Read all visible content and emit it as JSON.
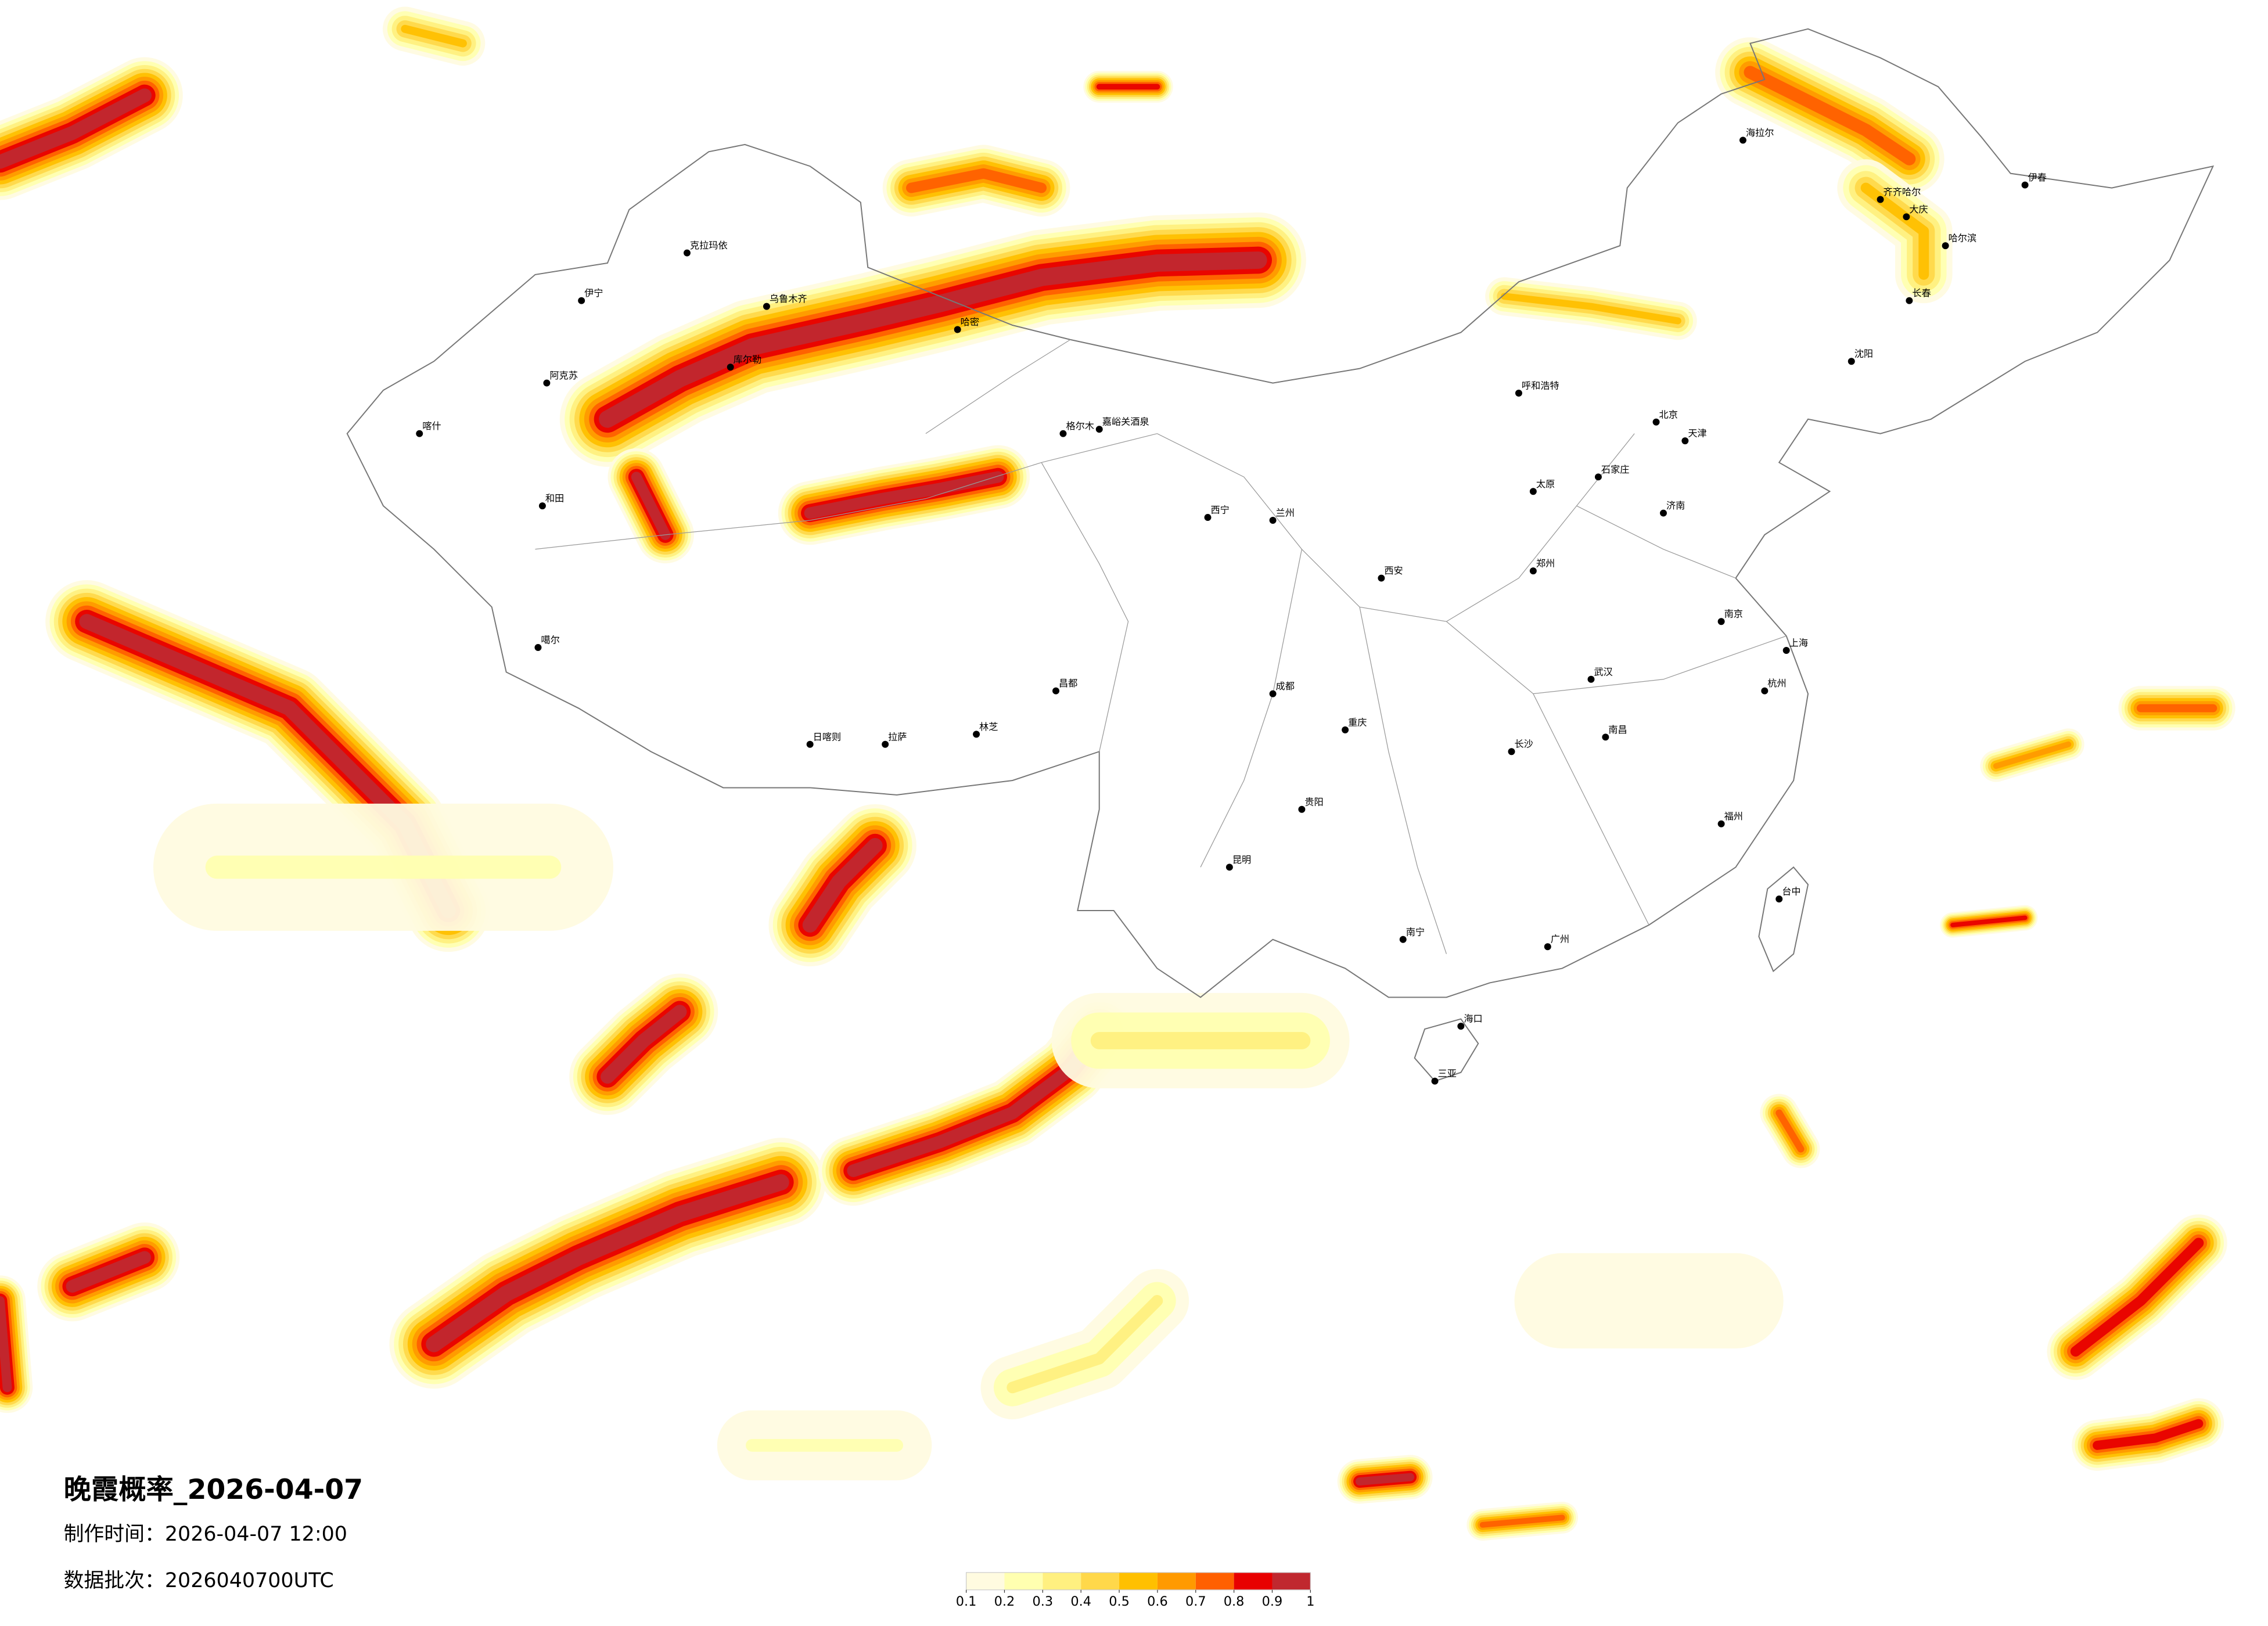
{
  "title": "晚霞概率_2026-04-07",
  "made_time": "制作时间：2026-04-07 12:00",
  "batch": "数据批次：2026040700UTC",
  "colorbar": {
    "ticks": [
      0.1,
      0.2,
      0.3,
      0.4,
      0.5,
      0.6,
      0.7,
      0.8,
      0.9,
      1
    ],
    "colors": [
      "#fffbe0",
      "#ffffb0",
      "#fff080",
      "#ffd84a",
      "#ffc000",
      "#ff9a00",
      "#ff6000",
      "#e80000",
      "#c0282f"
    ]
  },
  "cities": [
    "乌鲁木齐",
    "克拉玛依",
    "伊宁",
    "阿克苏",
    "喀什",
    "和田",
    "库尔勒",
    "哈密",
    "嘉峪关酒泉",
    "格尔木",
    "西宁",
    "兰州",
    "噶尔",
    "日喀则",
    "拉萨",
    "林芝",
    "昌都",
    "海拉尔",
    "齐齐哈尔",
    "大庆",
    "哈尔滨",
    "伊春",
    "长春",
    "沈阳",
    "呼和浩特",
    "北京",
    "天津",
    "石家庄",
    "太原",
    "济南",
    "西安",
    "郑州",
    "武汉",
    "南京",
    "上海",
    "杭州",
    "成都",
    "重庆",
    "贵阳",
    "昆明",
    "长沙",
    "南昌",
    "福州",
    "广州",
    "南宁",
    "海口",
    "三亚",
    "台中"
  ]
}
